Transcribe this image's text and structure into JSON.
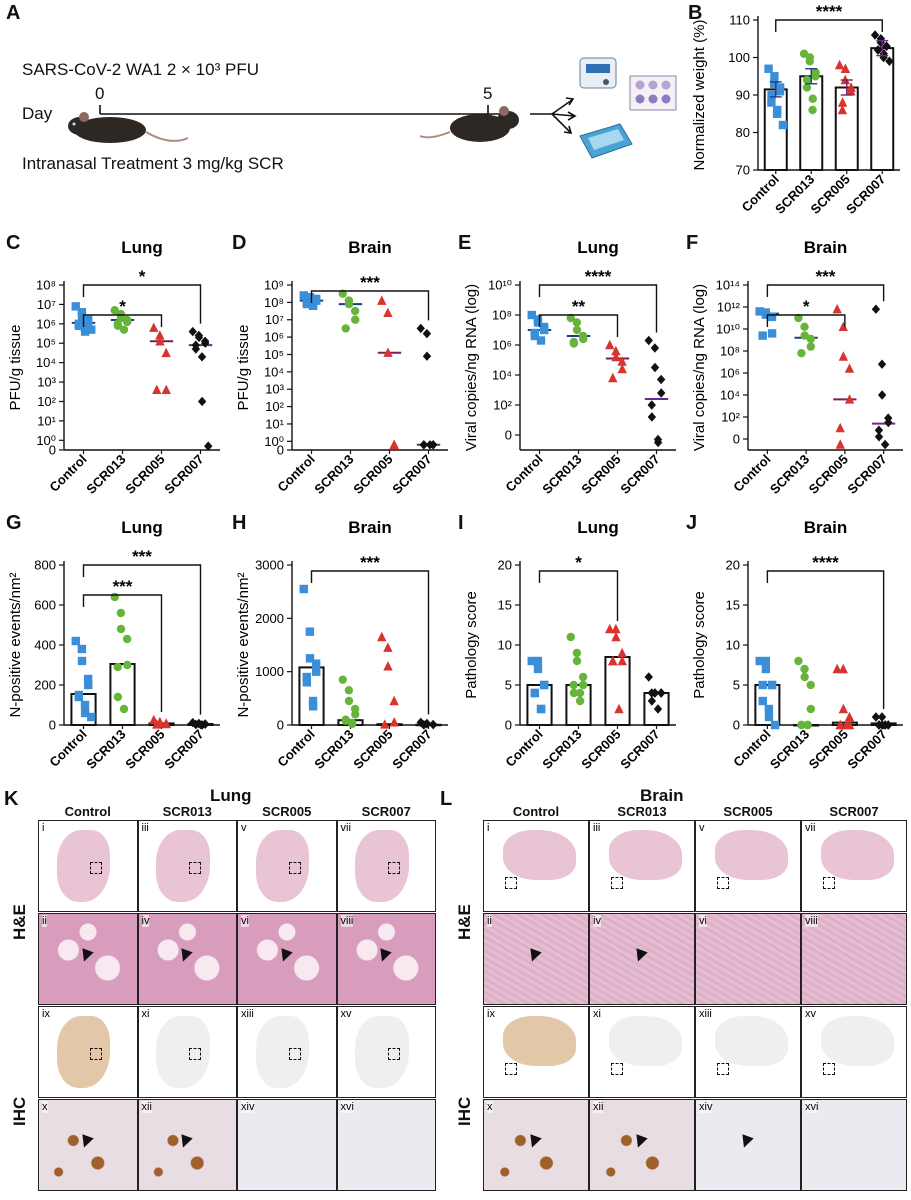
{
  "panels": {
    "A": {
      "letter": "A",
      "virus_label": "SARS-CoV-2 WA1 2 × 10³ PFU",
      "day_label": "Day",
      "day_start": "0",
      "day_end": "5",
      "treatment_label": "Intranasal Treatment 3 mg/kg SCR"
    },
    "B": "B",
    "C": "C",
    "D": "D",
    "E": "E",
    "F": "F",
    "G": "G",
    "H": "H",
    "I": "I",
    "J": "J",
    "K": "K",
    "L": "L"
  },
  "histology": {
    "K_title": "Lung",
    "L_title": "Brain",
    "columns": [
      "Control",
      "SCR013",
      "SCR005",
      "SCR007"
    ],
    "rows": [
      "H&E",
      "IHC"
    ],
    "K_labels": [
      [
        "i",
        "iii",
        "v",
        "vii"
      ],
      [
        "ii",
        "iv",
        "vi",
        "viii"
      ],
      [
        "ix",
        "xi",
        "xiii",
        "xv"
      ],
      [
        "x",
        "xii",
        "xiv",
        "xvi"
      ]
    ],
    "L_labels": [
      [
        "i",
        "iii",
        "v",
        "vii"
      ],
      [
        "ii",
        "iv",
        "vi",
        "viii"
      ],
      [
        "ix",
        "xi",
        "xiii",
        "xv"
      ],
      [
        "x",
        "xii",
        "xiv",
        "xvi"
      ]
    ],
    "he_low": "#e9c4d4",
    "he_high": "#d89cbc",
    "ihc_low": "#f1eef2",
    "ihc_brown": "#a0602a"
  },
  "chart_data": [
    {
      "id": "B",
      "type": "bar",
      "title": "",
      "ylabel": "Normalized weight (%)",
      "categories": [
        "Control",
        "SCR013",
        "SCR005",
        "SCR007"
      ],
      "ylim": [
        70,
        110
      ],
      "yticks": [
        "70",
        "80",
        "90",
        "100",
        "110"
      ],
      "tick_values": [
        70,
        80,
        90,
        100,
        110
      ],
      "values": [
        91.5,
        95,
        92,
        102.5
      ],
      "points": [
        [
          97,
          95,
          93,
          92,
          91,
          90,
          88,
          86,
          85,
          82
        ],
        [
          101,
          100,
          99,
          96,
          95,
          94,
          92,
          89,
          86
        ],
        [
          98,
          97,
          94,
          92,
          91,
          88,
          86
        ],
        [
          106,
          105,
          104,
          103,
          103,
          102,
          102,
          101,
          100,
          99
        ]
      ],
      "significance": [
        {
          "from": 0,
          "to": 3,
          "label": "****"
        }
      ]
    },
    {
      "id": "C",
      "type": "scatter",
      "title": "Lung",
      "ylabel": "PFU/g tissue",
      "categories": [
        "Control",
        "SCR013",
        "SCR005",
        "SCR007"
      ],
      "ylim": [
        0,
        8
      ],
      "yticks": [
        "0",
        "10⁰",
        "10¹",
        "10²",
        "10³",
        "10⁴",
        "10⁵",
        "10⁶",
        "10⁷",
        "10⁸"
      ],
      "tick_values": [
        -0.5,
        0,
        1,
        2,
        3,
        4,
        5,
        6,
        7,
        8
      ],
      "values": [
        6.05,
        6.2,
        5.1,
        4.9
      ],
      "points": [
        [
          6.9,
          6.6,
          6.4,
          6.2,
          6.1,
          6.0,
          5.9,
          5.8,
          5.6,
          5.7
        ],
        [
          6.7,
          6.5,
          6.3,
          6.2,
          6.1,
          6.0,
          5.9,
          5.7
        ],
        [
          5.8,
          5.4,
          5.1,
          4.5,
          2.6,
          2.6
        ],
        [
          5.6,
          5.4,
          5.3,
          5.1,
          5.0,
          4.9,
          4.7,
          4.3,
          2.0,
          -0.3
        ]
      ],
      "significance": [
        {
          "from": 0,
          "to": 2,
          "label": "*"
        },
        {
          "from": 0,
          "to": 3,
          "label": "*"
        }
      ]
    },
    {
      "id": "D",
      "type": "scatter",
      "title": "Brain",
      "ylabel": "PFU/g tissue",
      "categories": [
        "Control",
        "SCR013",
        "SCR005",
        "SCR007"
      ],
      "ylim": [
        0,
        9
      ],
      "yticks": [
        "0",
        "10⁰",
        "10¹",
        "10²",
        "10³",
        "10⁴",
        "10⁵",
        "10⁶",
        "10⁷",
        "10⁸",
        "10⁹"
      ],
      "tick_values": [
        -0.5,
        0,
        1,
        2,
        3,
        4,
        5,
        6,
        7,
        8,
        9
      ],
      "values": [
        8.1,
        7.9,
        5.1,
        -0.2
      ],
      "points": [
        [
          8.4,
          8.3,
          8.2,
          8.2,
          8.1,
          8.0,
          7.9,
          7.9,
          7.8
        ],
        [
          8.5,
          8.1,
          7.9,
          7.5,
          7.0,
          6.5
        ],
        [
          8.1,
          7.4,
          5.1,
          -0.2,
          -0.2
        ],
        [
          6.5,
          6.2,
          4.9,
          -0.2,
          -0.2,
          -0.2,
          -0.2,
          -0.2
        ]
      ],
      "significance": [
        {
          "from": 0,
          "to": 3,
          "label": "***"
        }
      ]
    },
    {
      "id": "E",
      "type": "scatter",
      "title": "Lung",
      "ylabel": "Viral copies/ng RNA (log)",
      "categories": [
        "Control",
        "SCR013",
        "SCR005",
        "SCR007"
      ],
      "ylim": [
        -1,
        10
      ],
      "yticks": [
        "0",
        "10²",
        "10⁴",
        "10⁶",
        "10⁸",
        "10¹⁰"
      ],
      "tick_values": [
        0,
        2,
        4,
        6,
        8,
        10
      ],
      "values": [
        7.0,
        6.6,
        5.1,
        2.4
      ],
      "points": [
        [
          8.0,
          7.7,
          7.5,
          7.2,
          7.0,
          6.8,
          6.6,
          6.3
        ],
        [
          7.8,
          7.5,
          7.0,
          6.6,
          6.4,
          6.2,
          6.1
        ],
        [
          6.0,
          5.6,
          5.2,
          4.9,
          4.4,
          3.8
        ],
        [
          6.3,
          5.8,
          4.5,
          3.7,
          2.8,
          2.0,
          1.2,
          -0.3,
          -0.5
        ]
      ],
      "significance": [
        {
          "from": 0,
          "to": 2,
          "label": "**"
        },
        {
          "from": 0,
          "to": 3,
          "label": "****"
        }
      ]
    },
    {
      "id": "F",
      "type": "scatter",
      "title": "Brain",
      "ylabel": "Viral copies/ng RNA (log)",
      "categories": [
        "Control",
        "SCR013",
        "SCR005",
        "SCR007"
      ],
      "ylim": [
        -1,
        14
      ],
      "yticks": [
        "0",
        "10²",
        "10⁴",
        "10⁶",
        "10⁸",
        "10¹⁰",
        "10¹²",
        "10¹⁴"
      ],
      "tick_values": [
        0,
        2,
        4,
        6,
        8,
        10,
        12,
        14
      ],
      "values": [
        11.4,
        9.2,
        3.6,
        1.4
      ],
      "points": [
        [
          11.6,
          11.5,
          11.3,
          11.1,
          9.6,
          9.4
        ],
        [
          11.0,
          10.2,
          9.4,
          9.1,
          8.4,
          7.8
        ],
        [
          11.8,
          10.2,
          7.5,
          6.4,
          3.6,
          1.0,
          -0.5
        ],
        [
          11.8,
          6.8,
          4.0,
          1.9,
          1.5,
          0.8,
          0.2,
          -0.5
        ]
      ],
      "significance": [
        {
          "from": 0,
          "to": 2,
          "label": "*"
        },
        {
          "from": 0,
          "to": 3,
          "label": "***"
        }
      ]
    },
    {
      "id": "G",
      "type": "bar",
      "title": "Lung",
      "ylabel": "N-positive events/nm²",
      "categories": [
        "Control",
        "SCR013",
        "SCR005",
        "SCR007"
      ],
      "ylim": [
        0,
        800
      ],
      "yticks": [
        "0",
        "200",
        "400",
        "600",
        "800"
      ],
      "tick_values": [
        0,
        200,
        400,
        600,
        800
      ],
      "values": [
        155,
        305,
        8,
        5
      ],
      "points": [
        [
          420,
          380,
          320,
          230,
          200,
          150,
          140,
          100,
          60,
          40
        ],
        [
          640,
          560,
          480,
          430,
          300,
          290,
          140,
          80
        ],
        [
          25,
          15,
          10,
          8,
          5,
          3
        ],
        [
          12,
          8,
          6,
          5,
          4,
          3,
          2,
          1,
          0
        ]
      ],
      "significance": [
        {
          "from": 0,
          "to": 2,
          "label": "***"
        },
        {
          "from": 0,
          "to": 3,
          "label": "***"
        }
      ]
    },
    {
      "id": "H",
      "type": "bar",
      "title": "Brain",
      "ylabel": "N-positive events/nm²",
      "categories": [
        "Control",
        "SCR013",
        "SCR005",
        "SCR007"
      ],
      "ylim": [
        0,
        3000
      ],
      "yticks": [
        "0",
        "1000",
        "2000",
        "3000"
      ],
      "tick_values": [
        0,
        1000,
        2000,
        3000
      ],
      "values": [
        1080,
        90,
        15,
        5
      ],
      "points": [
        [
          2550,
          1750,
          1250,
          1150,
          1000,
          900,
          800,
          450,
          350
        ],
        [
          850,
          650,
          450,
          300,
          200,
          100,
          80,
          40,
          20
        ],
        [
          1650,
          1450,
          1100,
          450,
          50,
          10
        ],
        [
          50,
          30,
          20,
          10,
          5,
          3,
          1
        ]
      ],
      "significance": [
        {
          "from": 0,
          "to": 3,
          "label": "***"
        }
      ]
    },
    {
      "id": "I",
      "type": "bar",
      "title": "Lung",
      "ylabel": "Pathology score",
      "categories": [
        "Control",
        "SCR013",
        "SCR005",
        "SCR007"
      ],
      "ylim": [
        0,
        20
      ],
      "yticks": [
        "0",
        "5",
        "10",
        "15",
        "20"
      ],
      "tick_values": [
        0,
        5,
        10,
        15,
        20
      ],
      "values": [
        5,
        5,
        8.5,
        4
      ],
      "points": [
        [
          8,
          8,
          7,
          5,
          5,
          4,
          4,
          2,
          2
        ],
        [
          11,
          9,
          8,
          6,
          5,
          5,
          4,
          4,
          3
        ],
        [
          12,
          12,
          11,
          9,
          8,
          8,
          8,
          2
        ],
        [
          6,
          4,
          4,
          4,
          4,
          4,
          3,
          2
        ]
      ],
      "significance": [
        {
          "from": 0,
          "to": 2,
          "label": "*"
        }
      ]
    },
    {
      "id": "J",
      "type": "bar",
      "title": "Brain",
      "ylabel": "Pathology score",
      "categories": [
        "Control",
        "SCR013",
        "SCR005",
        "SCR007"
      ],
      "ylim": [
        0,
        20
      ],
      "yticks": [
        "0",
        "5",
        "10",
        "15",
        "20"
      ],
      "tick_values": [
        0,
        5,
        10,
        15,
        20
      ],
      "values": [
        5,
        0,
        0.3,
        0.2
      ],
      "points": [
        [
          8,
          8,
          7,
          5,
          5,
          5,
          3,
          2,
          1,
          0
        ],
        [
          8,
          7,
          6,
          5,
          2,
          0,
          0,
          0,
          0
        ],
        [
          7,
          7,
          2,
          1,
          0,
          0,
          0,
          0
        ],
        [
          1,
          1,
          0,
          0,
          0,
          0,
          0,
          0,
          0
        ]
      ],
      "significance": [
        {
          "from": 0,
          "to": 3,
          "label": "****"
        }
      ]
    }
  ],
  "style": {
    "group_colors": [
      "#3a8fd8",
      "#66b53a",
      "#d8332e",
      "#111111"
    ],
    "group_markers": [
      "square",
      "circle",
      "triangle",
      "diamond"
    ],
    "mean_colors": [
      "#1f3c88",
      "#1f3c88",
      "#7a1f5c",
      "#6a2a8a"
    ]
  }
}
